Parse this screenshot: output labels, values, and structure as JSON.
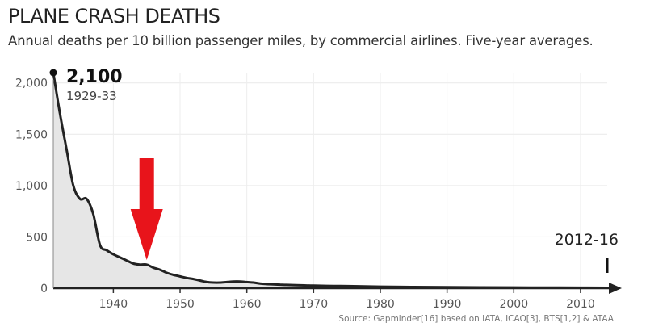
{
  "header": {
    "title": "PLANE CRASH DEATHS",
    "subtitle": "Annual deaths per 10 billion passenger miles, by commercial airlines. Five-year averages."
  },
  "chart_data": {
    "type": "area",
    "title": "PLANE CRASH DEATHS",
    "subtitle": "Annual deaths per 10 billion passenger miles, by commercial airlines. Five-year averages.",
    "xlabel": "",
    "ylabel": "",
    "xlim": [
      1931,
      2014
    ],
    "ylim": [
      0,
      2100
    ],
    "x_ticks": [
      1940,
      1950,
      1960,
      1970,
      1980,
      1990,
      2000,
      2010
    ],
    "y_ticks": [
      0,
      500,
      1000,
      1500,
      2000
    ],
    "y_tick_labels": [
      "0",
      "500",
      "1,000",
      "1,500",
      "2,000"
    ],
    "grid": true,
    "colors": {
      "line": "#222222",
      "fill": "#e6e6e6",
      "arrow": "#e8141b"
    },
    "series": [
      {
        "x": [
          1931,
          1932,
          1933,
          1934,
          1935,
          1936,
          1937,
          1938,
          1939,
          1940,
          1941,
          1942,
          1943,
          1944,
          1945,
          1946,
          1947,
          1948,
          1949,
          1950,
          1951,
          1952,
          1953,
          1954,
          1955,
          1956,
          1957,
          1958,
          1959,
          1960,
          1961,
          1962,
          1963,
          1964,
          1965,
          1966,
          1968,
          1970,
          1973,
          1976,
          1980,
          1985,
          1990,
          1995,
          2000,
          2005,
          2010,
          2014
        ],
        "y": [
          2100,
          1700,
          1350,
          1000,
          870,
          870,
          720,
          420,
          370,
          330,
          300,
          270,
          240,
          230,
          230,
          200,
          180,
          150,
          130,
          115,
          100,
          90,
          75,
          60,
          55,
          55,
          60,
          65,
          65,
          60,
          55,
          45,
          40,
          38,
          35,
          32,
          28,
          25,
          22,
          20,
          15,
          12,
          10,
          8,
          7,
          6,
          5,
          4
        ]
      }
    ],
    "annotations": [
      {
        "value": "2,100",
        "label": "1929-33",
        "x": 1931,
        "y": 2100
      },
      {
        "label": "2012-16",
        "x": 2014,
        "y": 4
      }
    ],
    "highlight_arrow_x": 1945,
    "source": "Source: Gapminder[16] based on IATA, ICAO[3], BTS[1,2] & ATAA"
  }
}
